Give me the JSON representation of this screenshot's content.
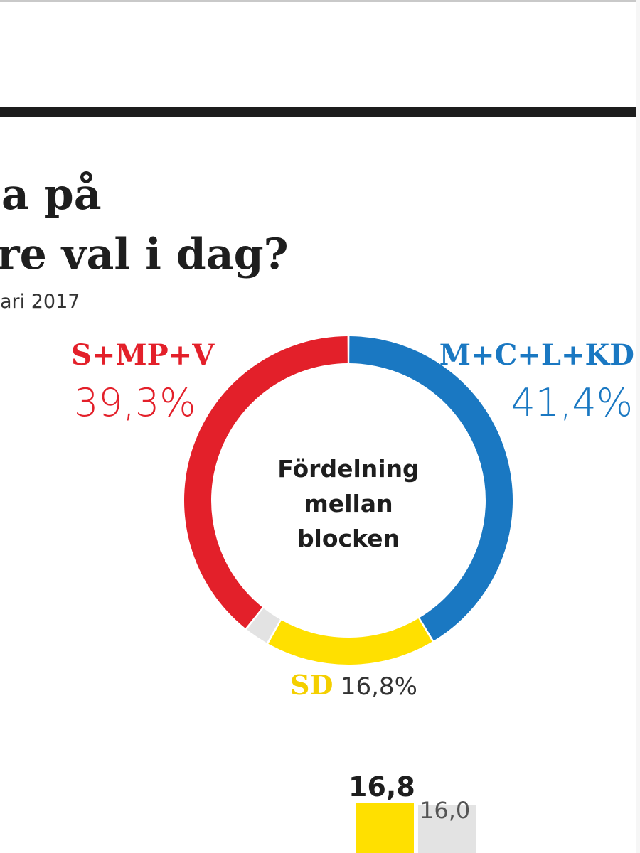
{
  "title": {
    "line1": "a på",
    "line2": "re val i dag?"
  },
  "date_text": "ari 2017",
  "chart_data": [
    {
      "type": "pie",
      "center_label": [
        "Fördelning",
        "mellan",
        "blocken"
      ],
      "slices": [
        {
          "label": "M+C+L+KD",
          "value": 41.4,
          "display": "41,4%",
          "color": "#1a78c2"
        },
        {
          "label": "SD",
          "value": 16.8,
          "display": "16,8%",
          "color": "#ffe000"
        },
        {
          "label": "",
          "value": 2.5,
          "display": "",
          "color": "#e3e3e3"
        },
        {
          "label": "S+MP+V",
          "value": 39.3,
          "display": "39,3%",
          "color": "#e3202a"
        }
      ]
    },
    {
      "type": "bar",
      "categories": [
        "",
        ""
      ],
      "values": [
        16.8,
        16.0
      ],
      "labels": [
        "16,8",
        "16,0"
      ],
      "colors": [
        "#ffe000",
        "#e3e3e3"
      ]
    }
  ]
}
